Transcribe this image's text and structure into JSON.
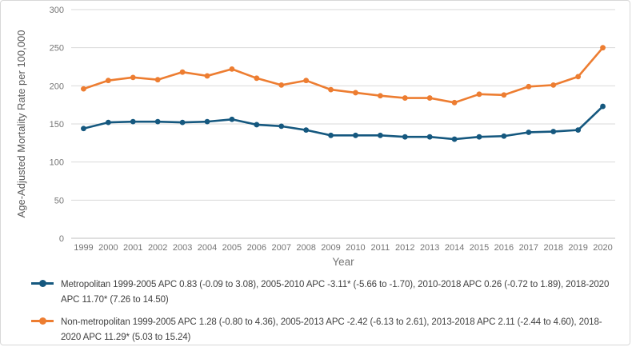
{
  "chart_data": {
    "type": "line",
    "title": "",
    "xlabel": "Year",
    "ylabel": "Age-Adjusted Mortality Rate per 100,000",
    "x": [
      "1999",
      "2000",
      "2001",
      "2002",
      "2003",
      "2004",
      "2005",
      "2006",
      "2007",
      "2008",
      "2009",
      "2010",
      "2011",
      "2012",
      "2013",
      "2014",
      "2015",
      "2016",
      "2017",
      "2018",
      "2019",
      "2020"
    ],
    "y_ticks": [
      0,
      50,
      100,
      150,
      200,
      250,
      300
    ],
    "ylim": [
      0,
      300
    ],
    "grid": "horizontal",
    "legend_position": "bottom-left",
    "series": [
      {
        "name": "Metropolitan",
        "color": "#15587f",
        "marker": "circle",
        "values": [
          144,
          152,
          153,
          153,
          152,
          153,
          156,
          149,
          147,
          142,
          135,
          135,
          135,
          133,
          133,
          130,
          133,
          134,
          139,
          140,
          142,
          173
        ]
      },
      {
        "name": "Non-metropolitan",
        "color": "#ed7d31",
        "marker": "circle",
        "values": [
          196,
          207,
          211,
          208,
          218,
          213,
          222,
          210,
          201,
          207,
          195,
          191,
          187,
          184,
          184,
          178,
          189,
          188,
          199,
          201,
          212,
          250
        ]
      }
    ]
  },
  "legend": {
    "items": [
      {
        "series": "Metropolitan",
        "label": "Metropolitan 1999-2005 APC 0.83 (-0.09 to 3.08), 2005-2010 APC -3.11* (-5.66 to -1.70), 2010-2018 APC 0.26 (-0.72 to 1.89), 2018-2020 APC 11.70* (7.26 to 14.50)"
      },
      {
        "series": "Non-metropolitan",
        "label": "Non-metropolitan 1999-2005 APC 1.28 (-0.80 to 4.36), 2005-2013 APC -2.42 (-6.13 to 2.61), 2013-2018 APC 2.11 (-2.44 to 4.60), 2018-2020 APC 11.29* (5.03 to 15.24)"
      }
    ]
  },
  "colors": {
    "gridline": "#d9d9d9",
    "axis_line": "#bfbfbf",
    "tick_text": "#757575",
    "axis_title_text": "#595959"
  }
}
